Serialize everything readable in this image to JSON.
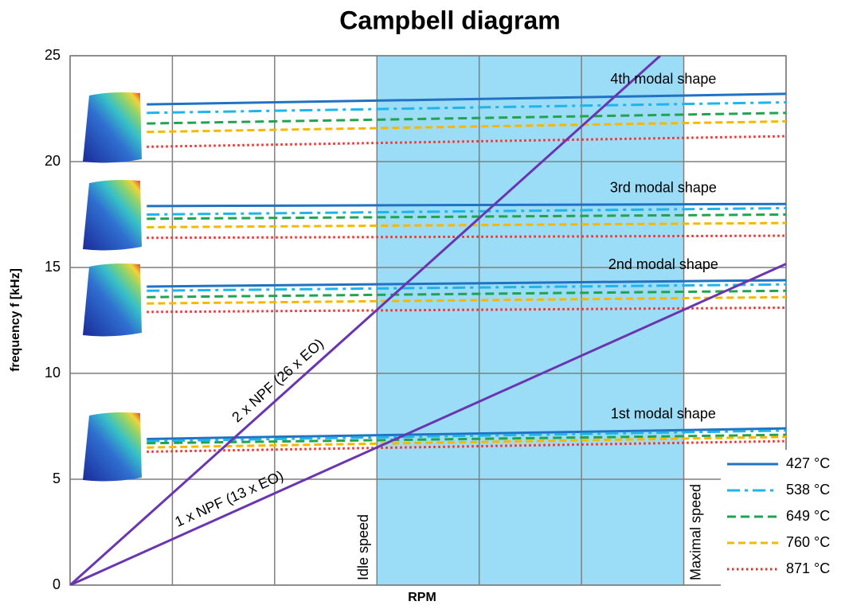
{
  "chart_data": {
    "type": "line",
    "title": "Campbell diagram",
    "xlabel": "RPM",
    "ylabel": "frequency f [kHz]",
    "xlim": [
      0,
      7
    ],
    "ylim": [
      0,
      25
    ],
    "yticks": [
      0,
      5,
      10,
      15,
      20,
      25
    ],
    "grid": true,
    "legend": "lower right",
    "band": {
      "from": 3,
      "to": 6,
      "color": "#9bdcf6",
      "labels": [
        "Idle speed",
        "Maximal speed"
      ]
    },
    "x": [
      0.75,
      7
    ],
    "mode_labels": [
      "1st modal shape",
      "2nd modal shape",
      "3rd modal shape",
      "4th modal shape"
    ],
    "series": [
      {
        "name": "427 °C",
        "color": "#2272c3",
        "dash": "solid",
        "modes": [
          [
            6.9,
            7.4
          ],
          [
            14.1,
            14.4
          ],
          [
            17.9,
            18.0
          ],
          [
            22.7,
            23.2
          ]
        ]
      },
      {
        "name": "538 °C",
        "color": "#1fb4ea",
        "dash": "dashdot",
        "modes": [
          [
            6.8,
            7.3
          ],
          [
            13.9,
            14.2
          ],
          [
            17.5,
            17.8
          ],
          [
            22.3,
            22.8
          ]
        ]
      },
      {
        "name": "649 °C",
        "color": "#22a34f",
        "dash": "dashed",
        "modes": [
          [
            6.7,
            7.1
          ],
          [
            13.6,
            13.9
          ],
          [
            17.3,
            17.5
          ],
          [
            21.8,
            22.3
          ]
        ]
      },
      {
        "name": "760 °C",
        "color": "#f5b800",
        "dash": "longdash",
        "modes": [
          [
            6.5,
            7.0
          ],
          [
            13.3,
            13.6
          ],
          [
            16.9,
            17.1
          ],
          [
            21.4,
            21.9
          ]
        ]
      },
      {
        "name": "871 °C",
        "color": "#e8322f",
        "dash": "dotted",
        "modes": [
          [
            6.3,
            6.8
          ],
          [
            12.9,
            13.1
          ],
          [
            16.4,
            16.5
          ],
          [
            20.7,
            21.2
          ]
        ]
      }
    ],
    "excitation": [
      {
        "label": "2 x NPF (26 x EO)",
        "color": "#6a35b0",
        "x": [
          0,
          5.77
        ],
        "values": [
          0,
          25
        ]
      },
      {
        "label": "1 x NPF (13 x EO)",
        "color": "#6a35b0",
        "x": [
          0,
          7
        ],
        "values": [
          0,
          15.17
        ]
      }
    ]
  }
}
